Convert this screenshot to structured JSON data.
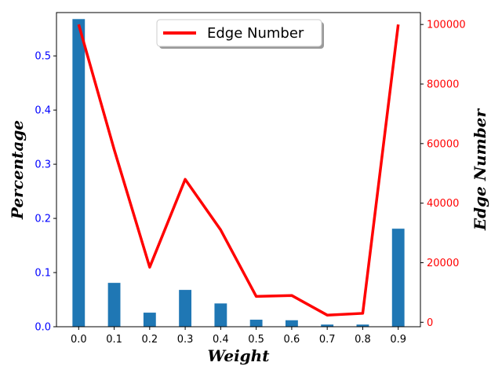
{
  "chart_data": {
    "type": "bar",
    "xlabel": "Weight",
    "ylabel": "Percentage",
    "y2label": "Edge Number",
    "categories": [
      "0.0",
      "0.1",
      "0.2",
      "0.3",
      "0.4",
      "0.5",
      "0.6",
      "0.7",
      "0.8",
      "0.9"
    ],
    "bar_series": {
      "values": [
        0.568,
        0.081,
        0.026,
        0.068,
        0.043,
        0.013,
        0.012,
        0.004,
        0.004,
        0.181
      ],
      "color": "#1f77b4",
      "axis": "left"
    },
    "line_series": {
      "name": "Edge Number",
      "values": [
        100000,
        58000,
        18500,
        48000,
        31000,
        8700,
        9000,
        2400,
        3000,
        100000
      ],
      "color": "#ff0000",
      "axis": "right"
    },
    "ylim": [
      0,
      0.58
    ],
    "y2lim": [
      -1500,
      104000
    ],
    "yticks": [
      "0.0",
      "0.1",
      "0.2",
      "0.3",
      "0.4",
      "0.5"
    ],
    "y2ticks": [
      "0",
      "20000",
      "40000",
      "60000",
      "80000",
      "100000"
    ],
    "left_axis_color": "#0000ff",
    "right_axis_color": "#ff0000",
    "legend_position": "top-center",
    "grid": false
  }
}
